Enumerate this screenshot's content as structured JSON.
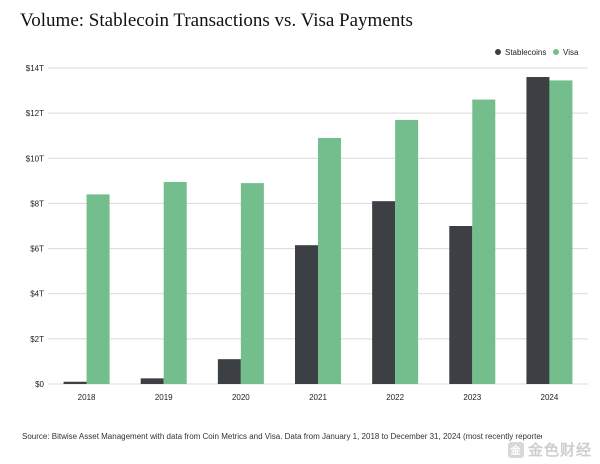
{
  "chart_data": {
    "type": "bar",
    "title": "Volume: Stablecoin Transactions vs. Visa Payments",
    "categories": [
      "2018",
      "2019",
      "2020",
      "2021",
      "2022",
      "2023",
      "2024"
    ],
    "series": [
      {
        "name": "Stablecoins",
        "color": "#3c3f44",
        "values": [
          0.1,
          0.25,
          1.1,
          6.15,
          8.1,
          7.0,
          13.6
        ]
      },
      {
        "name": "Visa",
        "color": "#74bd8c",
        "values": [
          8.4,
          8.95,
          8.9,
          10.9,
          11.7,
          12.6,
          13.45
        ]
      }
    ],
    "ylim": [
      0,
      14
    ],
    "yticks": [
      0,
      2,
      4,
      6,
      8,
      10,
      12,
      14
    ],
    "ytick_labels": [
      "$0",
      "$2T",
      "$4T",
      "$6T",
      "$8T",
      "$10T",
      "$12T",
      "$14T"
    ],
    "grid": true,
    "legend": "top-right",
    "xlabel": "",
    "ylabel": ""
  },
  "source_text": "Source: Bitwise Asset Management with data from Coin Metrics and Visa. Data from January 1, 2018 to December 31, 2024 (most recently reported data for Visa).",
  "watermark": {
    "logo": "金",
    "text": "金色财经"
  }
}
